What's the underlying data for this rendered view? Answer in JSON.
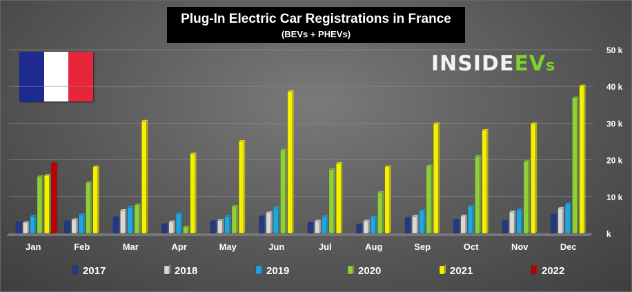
{
  "header": {
    "title": "Plug-In Electric Car Registrations in France",
    "subtitle": "(BEVs + PHEVs)"
  },
  "logo": {
    "part1": "INSIDE",
    "part2": "EV",
    "part3": "s"
  },
  "flag": {
    "colors": [
      "#1d2a8f",
      "#ffffff",
      "#e8263a"
    ]
  },
  "chart_data": {
    "type": "bar",
    "title": "Plug-In Electric Car Registrations in France",
    "subtitle": "(BEVs + PHEVs)",
    "xlabel": "",
    "ylabel": "",
    "ylim": [
      0,
      50000
    ],
    "y_ticks": [
      {
        "value": 0,
        "label": "k"
      },
      {
        "value": 10000,
        "label": "10 k"
      },
      {
        "value": 20000,
        "label": "20 k"
      },
      {
        "value": 30000,
        "label": "30 k"
      },
      {
        "value": 40000,
        "label": "40 k"
      },
      {
        "value": 50000,
        "label": "50 k"
      }
    ],
    "grid": true,
    "legend_position": "bottom",
    "categories": [
      "Jan",
      "Feb",
      "Mar",
      "Apr",
      "May",
      "Jun",
      "Jul",
      "Aug",
      "Sep",
      "Oct",
      "Nov",
      "Dec"
    ],
    "series": [
      {
        "name": "2017",
        "color": "#1f3a8a",
        "values": [
          2900,
          3200,
          4300,
          2400,
          3200,
          4500,
          2800,
          2300,
          4100,
          3600,
          3300,
          5000
        ]
      },
      {
        "name": "2018",
        "color": "#d8d8d8",
        "values": [
          2900,
          3700,
          6200,
          3100,
          3500,
          5600,
          3300,
          3300,
          4600,
          4700,
          5800,
          6800
        ]
      },
      {
        "name": "2019",
        "color": "#1ea7e0",
        "values": [
          4600,
          5000,
          7100,
          5300,
          4600,
          6900,
          4500,
          4400,
          6100,
          7300,
          6300,
          8000
        ]
      },
      {
        "name": "2020",
        "color": "#8fcf3a",
        "values": [
          15400,
          13800,
          7700,
          1700,
          7300,
          22600,
          17400,
          11100,
          18300,
          20900,
          19500,
          36900
        ]
      },
      {
        "name": "2021",
        "color": "#f4f000",
        "values": [
          15700,
          18100,
          30500,
          21600,
          25000,
          38600,
          19000,
          18100,
          29800,
          28000,
          29800,
          40100
        ]
      },
      {
        "name": "2022",
        "color": "#c00000",
        "values": [
          19000,
          null,
          null,
          null,
          null,
          null,
          null,
          null,
          null,
          null,
          null,
          null
        ]
      }
    ]
  }
}
